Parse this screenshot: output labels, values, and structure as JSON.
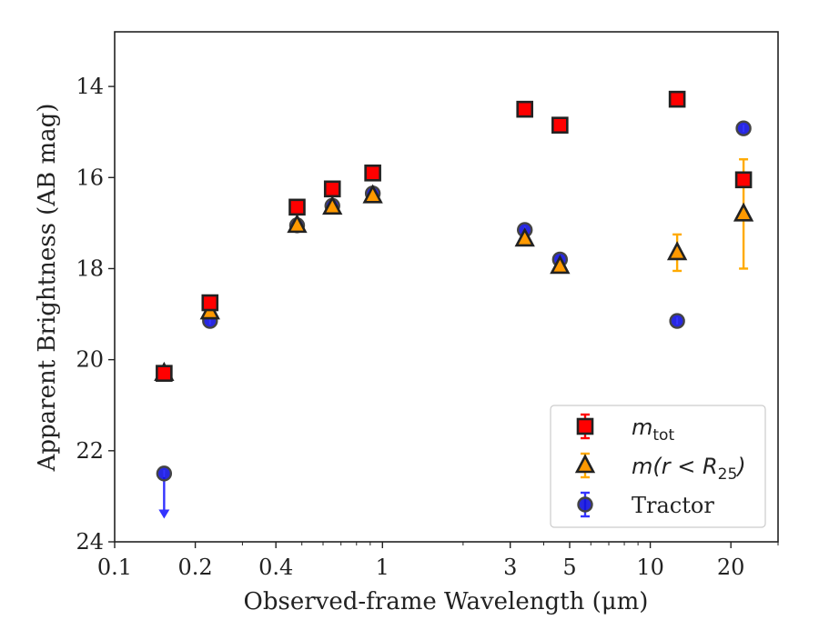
{
  "chart_data": {
    "type": "scatter",
    "xlabel": "Observed-frame Wavelength (μm)",
    "ylabel": "Apparent Brightness (AB mag)",
    "xscale": "log",
    "yinverted": true,
    "xlim": [
      0.1,
      30
    ],
    "ylim": [
      24,
      12.8
    ],
    "xticks": [
      {
        "value": 0.1,
        "label": "0.1"
      },
      {
        "value": 0.2,
        "label": "0.2"
      },
      {
        "value": 0.4,
        "label": "0.4"
      },
      {
        "value": 1,
        "label": "1"
      },
      {
        "value": 3,
        "label": "3"
      },
      {
        "value": 5,
        "label": "5"
      },
      {
        "value": 10,
        "label": "10"
      },
      {
        "value": 20,
        "label": "20"
      }
    ],
    "xminor": [
      0.3,
      0.5,
      0.6,
      0.7,
      0.8,
      0.9,
      2,
      4,
      6,
      7,
      8,
      9,
      30
    ],
    "yticks": [
      {
        "value": 14,
        "label": "14"
      },
      {
        "value": 16,
        "label": "16"
      },
      {
        "value": 18,
        "label": "18"
      },
      {
        "value": 20,
        "label": "20"
      },
      {
        "value": 22,
        "label": "22"
      },
      {
        "value": 24,
        "label": "24"
      }
    ],
    "grid": false,
    "legend_position": "lower-right",
    "series": [
      {
        "name": "m_tot",
        "legend": {
          "base": "m",
          "sub": "tot"
        },
        "marker": "square",
        "color": "#ff0000",
        "edge": "#222222",
        "errcolor": "#ff0000",
        "points": [
          {
            "x": 0.153,
            "y": 20.3
          },
          {
            "x": 0.227,
            "y": 18.75
          },
          {
            "x": 0.48,
            "y": 16.65
          },
          {
            "x": 0.65,
            "y": 16.25
          },
          {
            "x": 0.92,
            "y": 15.9
          },
          {
            "x": 3.4,
            "y": 14.5
          },
          {
            "x": 4.6,
            "y": 14.85
          },
          {
            "x": 12.6,
            "y": 14.28
          },
          {
            "x": 22.3,
            "y": 16.05
          }
        ]
      },
      {
        "name": "m(r < R25)",
        "legend": {
          "base": "m(r < R",
          "sub": "25",
          "tail": ")"
        },
        "marker": "triangle",
        "color": "#ff9900",
        "edge": "#222222",
        "errcolor": "#ffaa00",
        "points": [
          {
            "x": 0.153,
            "y": 20.3,
            "err": 0.15
          },
          {
            "x": 0.227,
            "y": 18.95
          },
          {
            "x": 0.48,
            "y": 17.05
          },
          {
            "x": 0.65,
            "y": 16.65
          },
          {
            "x": 0.92,
            "y": 16.4
          },
          {
            "x": 3.4,
            "y": 17.35
          },
          {
            "x": 4.6,
            "y": 17.95
          },
          {
            "x": 12.6,
            "y": 17.65,
            "err": 0.4
          },
          {
            "x": 22.3,
            "y": 16.8,
            "errlow": 1.2,
            "errhigh": 1.2
          }
        ]
      },
      {
        "name": "Tractor",
        "legend": {
          "base": "Tractor"
        },
        "marker": "circle",
        "color": "#1111dd",
        "edge": "#444444",
        "errcolor": "#3333ff",
        "points": [
          {
            "x": 0.153,
            "y": 22.5,
            "upper_limit": true
          },
          {
            "x": 0.227,
            "y": 19.15
          },
          {
            "x": 0.48,
            "y": 17.05
          },
          {
            "x": 0.65,
            "y": 16.62
          },
          {
            "x": 0.92,
            "y": 16.35
          },
          {
            "x": 3.4,
            "y": 17.15
          },
          {
            "x": 4.6,
            "y": 17.8
          },
          {
            "x": 12.6,
            "y": 19.15
          },
          {
            "x": 22.3,
            "y": 14.92
          }
        ]
      }
    ]
  }
}
